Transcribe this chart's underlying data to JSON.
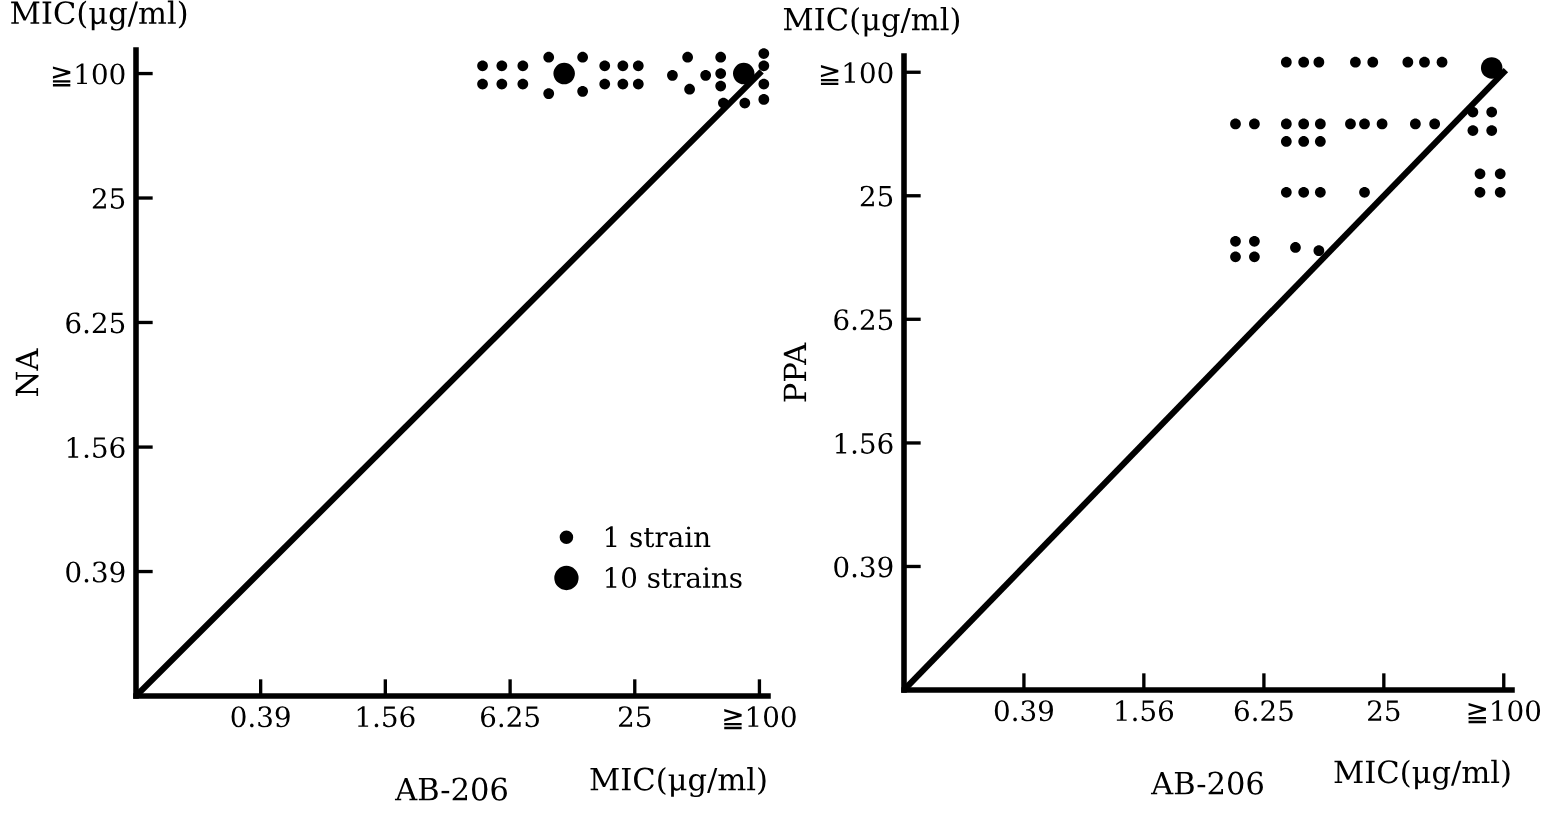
{
  "chart_data": [
    {
      "type": "bubble",
      "log": "xy",
      "xlabel": "AB-206",
      "ylabel": "NA",
      "annotations": [
        "MIC(μg/ml)",
        "MIC(μg/ml)"
      ],
      "xlim": [
        0.0975,
        110
      ],
      "ylim": [
        0.0975,
        130
      ],
      "xticks": [
        0.39,
        1.56,
        6.25,
        25,
        {
          "value": 100,
          "label": "≧100"
        }
      ],
      "yticks": [
        0.39,
        1.56,
        6.25,
        25,
        {
          "value": 100,
          "label": "≧100"
        }
      ],
      "grid": false,
      "legend": "bottom right",
      "marker": "circle",
      "series": [
        {
          "name": "1 strain",
          "color": "#000000",
          "sizes": [
            0.25,
            0.25,
            0.25,
            0.25,
            0.25,
            0.25,
            0.25,
            0.25,
            0.25,
            0.25,
            0.25,
            0.25,
            0.25,
            0.25,
            0.25,
            0.25,
            0.25,
            0.25,
            0.25,
            0.25,
            0.25,
            0.25,
            0.25,
            0.25,
            0.25,
            0.25,
            0.25,
            0.25,
            0.25
          ],
          "x": [
            4.6,
            5.7,
            7.2,
            4.6,
            5.7,
            7.2,
            9.6,
            14,
            9.6,
            14,
            17.9,
            21.9,
            26,
            17.9,
            21.9,
            26,
            38,
            45,
            55,
            46,
            65,
            65,
            65,
            67,
            85,
            105,
            105,
            105,
            105
          ],
          "values": [
            109,
            109,
            109,
            89,
            89,
            89,
            120,
            120,
            80,
            82,
            109,
            109,
            109,
            89,
            89,
            89,
            98,
            120,
            98,
            84,
            120,
            100,
            87,
            72,
            72,
            125,
            109,
            89,
            75
          ]
        },
        {
          "name": "10 strains",
          "color": "#000000",
          "sizes": [
            1,
            1
          ],
          "x": [
            11.4,
            84
          ],
          "values": [
            100,
            100
          ]
        },
        {
          "type": "line",
          "marker": "none",
          "color": "#000000",
          "x": [
            0.1,
            100
          ],
          "values": [
            0.1,
            100
          ]
        }
      ]
    },
    {
      "type": "bubble",
      "log": "xy",
      "xlabel": "AB-206",
      "ylabel": "PPA",
      "annotations": [
        "MIC(μg/ml)",
        "MIC(μg/ml)"
      ],
      "xlim": [
        0.0975,
        110
      ],
      "ylim": [
        0.0975,
        120
      ],
      "xticks": [
        0.39,
        1.56,
        6.25,
        25,
        {
          "value": 100,
          "label": "≧100"
        }
      ],
      "yticks": [
        0.39,
        1.56,
        6.25,
        25,
        {
          "value": 100,
          "label": "≧100"
        }
      ],
      "grid": false,
      "marker": "circle",
      "series": [
        {
          "color": "#000000",
          "sizes": [
            0.25,
            0.25,
            0.25,
            0.25,
            0.25,
            0.25,
            0.25,
            0.25,
            0.25,
            0.25,
            0.25,
            0.25,
            0.25,
            0.25,
            0.25,
            0.25,
            0.25,
            0.25,
            0.25,
            0.25,
            0.25,
            0.25,
            0.25,
            0.25,
            0.25,
            0.25,
            0.25,
            0.25,
            0.25,
            0.25,
            0.25,
            0.25,
            0.25,
            0.25,
            0.25,
            0.25,
            0.25,
            0.25,
            0.25
          ],
          "x": [
            8.1,
            9.9,
            11.8,
            18,
            22,
            33,
            40,
            49,
            4.5,
            5.6,
            8.1,
            9.9,
            12,
            17,
            20,
            24.5,
            36,
            45,
            70,
            87,
            70,
            87,
            8.1,
            9.9,
            12,
            8.1,
            9.9,
            12,
            20,
            76,
            96,
            76,
            96,
            4.5,
            5.6,
            4.5,
            5.6,
            9.0,
            11.8
          ],
          "values": [
            112,
            112,
            112,
            112,
            112,
            112,
            112,
            112,
            56,
            56,
            56,
            56,
            56,
            56,
            56,
            56,
            56,
            56,
            64,
            64,
            52,
            52,
            46,
            46,
            46,
            26,
            26,
            26,
            26,
            32,
            32,
            26,
            26,
            15,
            15,
            12.6,
            12.6,
            14,
            13.5
          ]
        },
        {
          "color": "#000000",
          "sizes": [
            1
          ],
          "x": [
            87
          ],
          "values": [
            105
          ]
        },
        {
          "type": "line",
          "marker": "none",
          "color": "#000000",
          "x": [
            0.1,
            100
          ],
          "values": [
            0.1,
            100
          ]
        }
      ]
    }
  ]
}
